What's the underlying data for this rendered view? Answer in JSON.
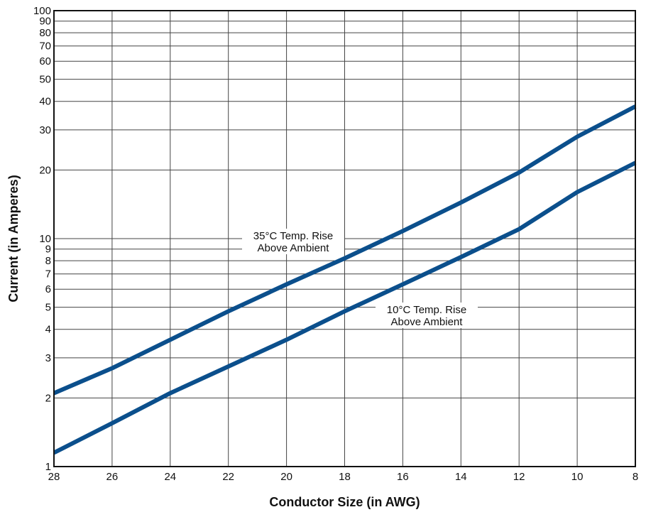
{
  "chart_data": {
    "type": "line",
    "xlabel": "Conductor Size (in AWG)",
    "ylabel": "Current (in Amperes)",
    "x_reversed": true,
    "xlim": [
      28,
      8
    ],
    "ylim": [
      1,
      100
    ],
    "y_scale": "log",
    "grid": true,
    "x_ticks": [
      "28",
      "26",
      "24",
      "22",
      "20",
      "18",
      "16",
      "14",
      "12",
      "10",
      "8"
    ],
    "y_ticks": [
      "1",
      "2",
      "3",
      "4",
      "5",
      "6",
      "7",
      "8",
      "9",
      "10",
      "20",
      "30",
      "40",
      "50",
      "60",
      "70",
      "80",
      "90",
      "100"
    ],
    "series": [
      {
        "x": [
          28,
          26,
          24,
          22,
          20,
          18,
          16,
          14,
          12,
          10,
          8
        ],
        "y": [
          2.1,
          2.7,
          3.6,
          4.8,
          6.3,
          8.2,
          10.8,
          14.4,
          19.5,
          28.0,
          38.0
        ],
        "color": "#0b4f8c"
      },
      {
        "x": [
          28,
          26,
          24,
          22,
          20,
          18,
          16,
          14,
          12,
          10,
          8
        ],
        "y": [
          1.15,
          1.55,
          2.1,
          2.75,
          3.6,
          4.8,
          6.3,
          8.3,
          11.0,
          16.0,
          21.5
        ],
        "color": "#0b4f8c"
      }
    ],
    "annotations": [
      {
        "line1": "35°C Temp. Rise",
        "line2": "Above Ambient"
      },
      {
        "line1": "10°C Temp. Rise",
        "line2": "Above Ambient"
      }
    ]
  }
}
